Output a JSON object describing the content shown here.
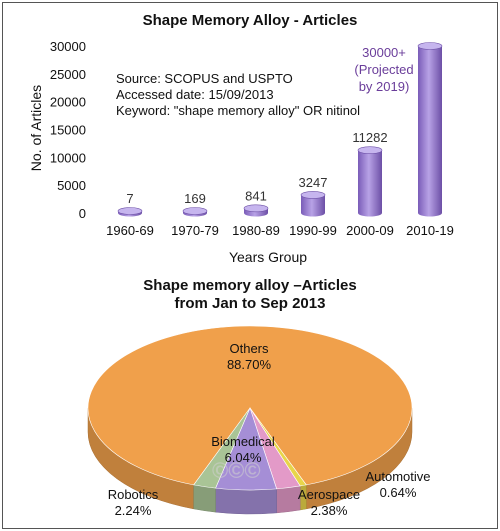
{
  "chart_data": [
    {
      "type": "bar",
      "title": "Shape Memory Alloy - Articles",
      "xlabel": "Years Group",
      "ylabel": "No. of Articles",
      "ylim": [
        0,
        30000
      ],
      "yticks": [
        "0",
        "5000",
        "10000",
        "15000",
        "20000",
        "25000",
        "30000"
      ],
      "categories": [
        "1960-69",
        "1970-79",
        "1980-89",
        "1990-99",
        "2000-09",
        "2010-19"
      ],
      "values": [
        7,
        169,
        841,
        3247,
        11282,
        30000
      ],
      "data_labels": [
        "7",
        "169",
        "841",
        "3247",
        "11282",
        ""
      ],
      "projection_label": [
        "30000+",
        "(Projected",
        "by 2019)"
      ],
      "source_notes": [
        "Source: SCOPUS and USPTO",
        "Accessed date: 15/09/2013",
        "Keyword: \"shape memory alloy\" OR nitinol"
      ],
      "bar_color": "#9b7fd0",
      "bar_color_dark": "#6f52a8",
      "grid": false
    },
    {
      "type": "pie",
      "title_lines": [
        "Shape memory alloy –Articles",
        "from Jan to Sep 2013"
      ],
      "slices": [
        {
          "label": "Others",
          "value": 88.7,
          "text": "88.70%",
          "color": "#f0a04b"
        },
        {
          "label": "Automotive",
          "value": 0.64,
          "text": "0.64%",
          "color": "#e8d54a"
        },
        {
          "label": "Aerospace",
          "value": 2.38,
          "text": "2.38%",
          "color": "#e39ac8"
        },
        {
          "label": "Biomedical",
          "value": 6.04,
          "text": "6.04%",
          "color": "#a58ed6"
        },
        {
          "label": "Robotics",
          "value": 2.24,
          "text": "2.24%",
          "color": "#a9c496"
        }
      ],
      "watermark": "©©©"
    }
  ]
}
